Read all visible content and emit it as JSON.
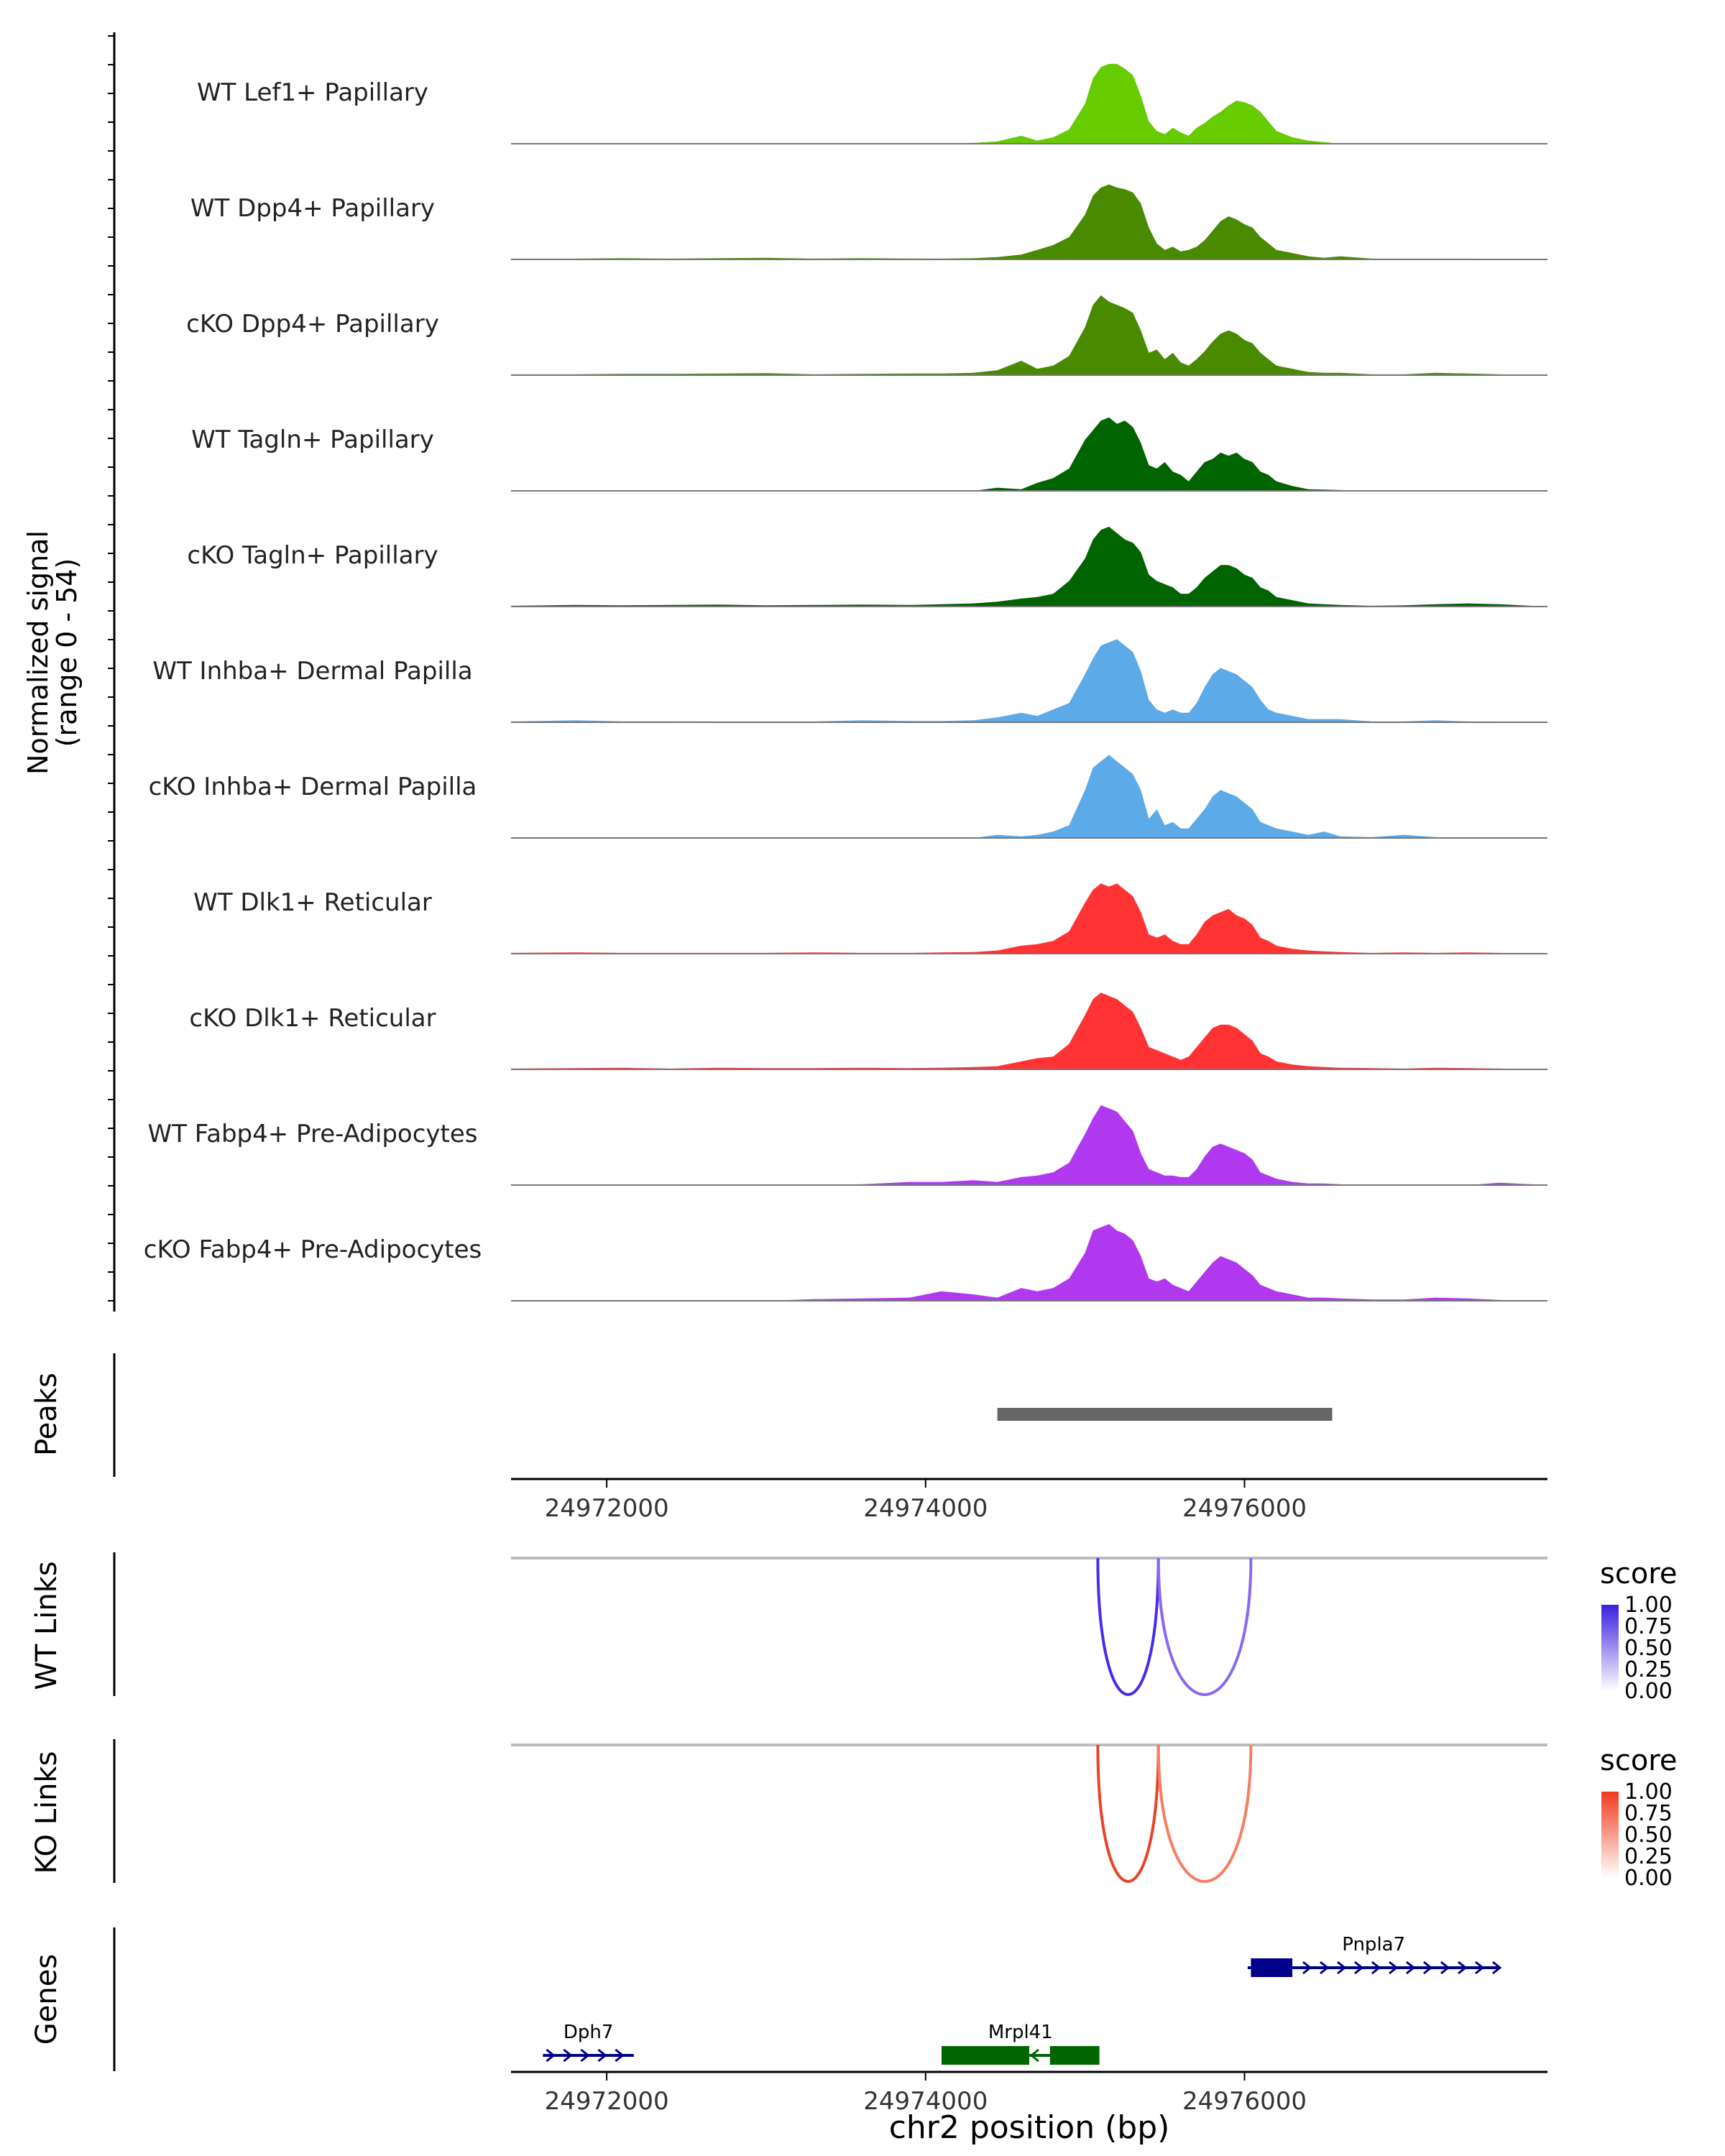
{
  "chart_data": {
    "type": "area",
    "region": {
      "chrom": "chr2",
      "start": 24971400,
      "end": 24977900
    },
    "y_axis_title_line1": "Normalized signal",
    "y_axis_title_line2": "(range 0 - 54)",
    "y_range": [
      0,
      54
    ],
    "x_axis_title": "chr2 position (bp)",
    "x_ticks": [
      {
        "value": 24972000,
        "label": "24972000"
      },
      {
        "value": 24974000,
        "label": "24974000"
      },
      {
        "value": 24976000,
        "label": "24976000"
      }
    ],
    "coverage_x": [
      24971400,
      24971800,
      24972100,
      24972400,
      24972700,
      24973000,
      24973300,
      24973600,
      24973900,
      24974100,
      24974300,
      24974450,
      24974600,
      24974700,
      24974800,
      24974900,
      24975000,
      24975050,
      24975100,
      24975150,
      24975200,
      24975250,
      24975300,
      24975350,
      24975400,
      24975450,
      24975500,
      24975550,
      24975600,
      24975650,
      24975700,
      24975750,
      24975800,
      24975850,
      24975900,
      24975950,
      24976000,
      24976050,
      24976100,
      24976150,
      24976200,
      24976300,
      24976400,
      24976500,
      24976600,
      24976800,
      24977000,
      24977200,
      24977400,
      24977600,
      24977900
    ],
    "series": [
      {
        "name": "WT Lef1+ Papillary",
        "color": "#66CC00",
        "values": [
          0,
          0,
          0,
          0,
          0,
          0,
          0,
          0,
          0,
          0.3,
          0.5,
          1.5,
          5,
          2,
          4,
          9,
          25,
          41,
          48,
          50,
          50,
          47,
          43,
          30,
          14,
          8,
          6,
          10,
          7,
          5,
          10,
          13,
          17,
          20,
          24,
          27,
          26,
          24,
          20,
          14,
          8,
          4,
          2,
          1,
          0,
          0,
          0,
          0,
          0,
          0,
          0
        ]
      },
      {
        "name": "WT Dpp4+ Papillary",
        "color": "#4A8A00",
        "values": [
          0.5,
          0.5,
          0.8,
          0.5,
          0.8,
          1,
          0.5,
          0.8,
          0.6,
          0.5,
          0.8,
          1.5,
          3,
          6,
          9,
          14,
          28,
          40,
          45,
          47,
          45,
          44,
          42,
          35,
          20,
          10,
          6,
          8,
          5,
          6,
          8,
          12,
          18,
          24,
          27,
          25,
          22,
          20,
          14,
          10,
          6,
          4,
          2,
          1,
          2,
          0.5,
          0.5,
          0.5,
          0.5,
          0.3,
          0
        ]
      },
      {
        "name": "cKO Dpp4+ Papillary",
        "color": "#4A8A00",
        "values": [
          0.5,
          0.5,
          0.8,
          0.8,
          1,
          1.2,
          0.5,
          0.8,
          1,
          1,
          1.5,
          3,
          9,
          4,
          6,
          12,
          30,
          44,
          50,
          46,
          44,
          42,
          39,
          28,
          14,
          16,
          10,
          14,
          8,
          6,
          10,
          15,
          21,
          26,
          28,
          26,
          22,
          20,
          14,
          10,
          6,
          4,
          2,
          1.5,
          1.5,
          0.5,
          0.5,
          1.5,
          1,
          0.5,
          0
        ]
      },
      {
        "name": "WT Tagln+ Papillary",
        "color": "#006400",
        "values": [
          0,
          0,
          0,
          0,
          0,
          0,
          0,
          0,
          0,
          0,
          0,
          2,
          1,
          5,
          8,
          14,
          32,
          38,
          44,
          46,
          42,
          44,
          40,
          30,
          16,
          14,
          18,
          12,
          10,
          6,
          12,
          18,
          20,
          24,
          22,
          24,
          20,
          18,
          12,
          10,
          6,
          3,
          1,
          0.8,
          0.5,
          0,
          0,
          0,
          0,
          0,
          0
        ]
      },
      {
        "name": "cKO Tagln+ Papillary",
        "color": "#006400",
        "values": [
          0.5,
          1,
          0.8,
          1,
          1.2,
          0.8,
          1,
          1.2,
          1,
          1.5,
          2,
          3,
          5,
          6,
          8,
          16,
          30,
          42,
          48,
          50,
          46,
          42,
          40,
          34,
          20,
          16,
          14,
          12,
          8,
          8,
          12,
          18,
          22,
          26,
          26,
          24,
          20,
          18,
          12,
          10,
          6,
          4,
          2,
          1.5,
          1,
          0.5,
          0.8,
          1.5,
          2,
          1.5,
          0
        ]
      },
      {
        "name": "WT Inhba+ Dermal Papilla",
        "color": "#5DAAE8",
        "values": [
          0.5,
          1.2,
          0.6,
          0.6,
          0.5,
          0.5,
          0.5,
          1.2,
          0.8,
          0.8,
          1.2,
          3,
          6,
          4,
          8,
          12,
          30,
          40,
          48,
          50,
          52,
          48,
          44,
          32,
          14,
          8,
          6,
          8,
          6,
          6,
          12,
          22,
          30,
          34,
          32,
          30,
          26,
          22,
          14,
          8,
          6,
          4,
          2,
          2,
          2,
          0.5,
          0.5,
          1.2,
          0.5,
          0.5,
          0
        ]
      },
      {
        "name": "cKO Inhba+ Dermal Papilla",
        "color": "#5DAAE8",
        "values": [
          0,
          0,
          0,
          0,
          0,
          0,
          0,
          0,
          0,
          0,
          0,
          2,
          1,
          2,
          4,
          8,
          30,
          44,
          48,
          52,
          48,
          44,
          40,
          30,
          12,
          18,
          8,
          10,
          6,
          6,
          12,
          18,
          26,
          30,
          28,
          26,
          22,
          18,
          10,
          8,
          6,
          4,
          2,
          4,
          1,
          0.5,
          2,
          0.5,
          0,
          0,
          0
        ]
      },
      {
        "name": "WT Dlk1+ Reticular",
        "color": "#FF3333",
        "values": [
          0.5,
          0.8,
          0.5,
          0.5,
          0.5,
          0.5,
          0.8,
          0.5,
          0.5,
          0.8,
          1,
          2,
          5,
          6,
          8,
          14,
          32,
          40,
          44,
          42,
          44,
          40,
          36,
          26,
          12,
          10,
          12,
          8,
          6,
          6,
          12,
          20,
          24,
          26,
          28,
          24,
          22,
          18,
          10,
          8,
          5,
          3,
          2,
          1.5,
          1,
          0.5,
          0.8,
          0.5,
          0.8,
          0.5,
          0
        ]
      },
      {
        "name": "cKO Dlk1+ Reticular",
        "color": "#FF3333",
        "values": [
          0.5,
          0.8,
          1,
          0.5,
          1,
          0.8,
          0.8,
          1,
          0.8,
          1,
          1.5,
          2,
          5,
          7,
          8,
          16,
          34,
          44,
          48,
          46,
          44,
          40,
          36,
          26,
          14,
          12,
          10,
          8,
          6,
          8,
          14,
          20,
          26,
          28,
          28,
          26,
          22,
          18,
          10,
          8,
          5,
          3,
          2,
          1.5,
          1,
          0.8,
          0.5,
          1,
          0.8,
          0.5,
          0
        ]
      },
      {
        "name": "WT Fabp4+ Pre-Adipocytes",
        "color": "#B039F0",
        "values": [
          0,
          0,
          0,
          0,
          0,
          0,
          0,
          0.5,
          2,
          2,
          3,
          2,
          5,
          6,
          8,
          14,
          32,
          42,
          50,
          48,
          46,
          40,
          34,
          20,
          10,
          8,
          6,
          6,
          5,
          5,
          10,
          18,
          24,
          26,
          24,
          22,
          20,
          16,
          8,
          6,
          4,
          2,
          1,
          1,
          0.5,
          0,
          0,
          0,
          0,
          1.5,
          0
        ]
      },
      {
        "name": "cKO Fabp4+ Pre-Adipocytes",
        "color": "#B039F0",
        "values": [
          0,
          0,
          0,
          0,
          0,
          0,
          1,
          1.5,
          2,
          6,
          4,
          2,
          8,
          6,
          8,
          14,
          30,
          44,
          46,
          48,
          44,
          42,
          38,
          28,
          14,
          12,
          14,
          10,
          8,
          6,
          12,
          18,
          24,
          28,
          26,
          24,
          20,
          16,
          10,
          8,
          6,
          4,
          2,
          2,
          1.5,
          0.8,
          0.8,
          2,
          1.5,
          0.5,
          0
        ]
      }
    ],
    "peaks": {
      "title": "Peaks",
      "color": "#666666",
      "ranges": [
        [
          24974450,
          24976550
        ]
      ]
    },
    "links": [
      {
        "title": "WT Links",
        "legend_title": "score",
        "color_low": "#FFFFFF",
        "color_high": "#3B1FE0",
        "legend_labels": [
          "1.00",
          "0.75",
          "0.50",
          "0.25",
          "0.00"
        ],
        "arcs": [
          {
            "start": 24975080,
            "end": 24975460,
            "score": 0.95,
            "color": "#4A2BE6"
          },
          {
            "start": 24975460,
            "end": 24976040,
            "score": 0.7,
            "color": "#8A68F0"
          }
        ]
      },
      {
        "title": "KO Links",
        "legend_title": "score",
        "color_low": "#FFFFFF",
        "color_high": "#F03A1E",
        "legend_labels": [
          "1.00",
          "0.75",
          "0.50",
          "0.25",
          "0.00"
        ],
        "arcs": [
          {
            "start": 24975080,
            "end": 24975460,
            "score": 0.95,
            "color": "#E8432A"
          },
          {
            "start": 24975460,
            "end": 24976040,
            "score": 0.7,
            "color": "#F47F63"
          }
        ]
      }
    ],
    "genes_title": "Genes",
    "genes": [
      {
        "name": "Dph7",
        "start": 24971600,
        "end": 24972170,
        "strand": "+",
        "row": 2,
        "color": "#00008B",
        "exons": []
      },
      {
        "name": "Mrpl41",
        "start": 24974100,
        "end": 24975090,
        "strand": "-",
        "row": 2,
        "color": "#006400",
        "exons": [
          [
            24974100,
            24974650
          ],
          [
            24974780,
            24975090
          ]
        ]
      },
      {
        "name": "Pnpla7",
        "start": 24976020,
        "end": 24977600,
        "strand": "+",
        "row": 1,
        "color": "#00008B",
        "exons": [
          [
            24976040,
            24976300
          ]
        ]
      }
    ]
  }
}
